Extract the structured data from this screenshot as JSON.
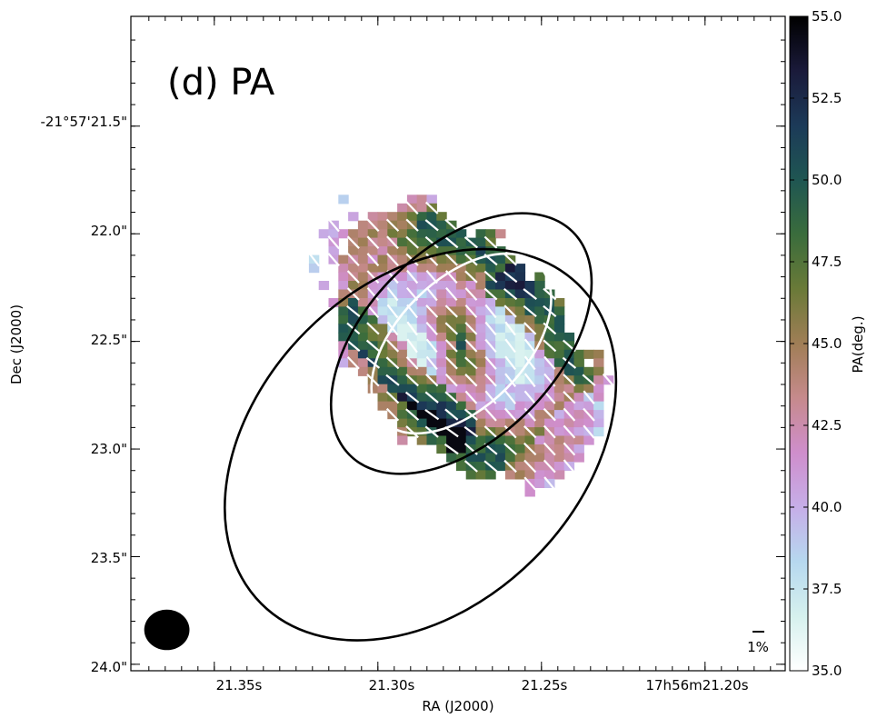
{
  "chart_data": {
    "type": "heatmap",
    "panel_label": "(d) PA",
    "xlabel": "RA (J2000)",
    "ylabel": "Dec (J2000)",
    "x_ticks": [
      {
        "ra_s": 21.35,
        "label": "21.35s"
      },
      {
        "ra_s": 21.3,
        "label": "21.30s"
      },
      {
        "ra_s": 21.25,
        "label": "21.25s"
      },
      {
        "ra_s": 21.2,
        "label": "17h56m21.20s"
      }
    ],
    "y_ticks": [
      {
        "dec_arcsec": 21.5,
        "label": "-21°57'21.5\""
      },
      {
        "dec_arcsec": 22.0,
        "label": "22.0\""
      },
      {
        "dec_arcsec": 22.5,
        "label": "22.5\""
      },
      {
        "dec_arcsec": 23.0,
        "label": "23.0\""
      },
      {
        "dec_arcsec": 23.5,
        "label": "23.5\""
      },
      {
        "dec_arcsec": 24.0,
        "label": "24.0\""
      }
    ],
    "xlim_ra_s": [
      21.3755,
      21.1755
    ],
    "ylim_dec_arcsec": [
      20.99,
      24.03
    ],
    "colorbar": {
      "label": "PA(deg.)",
      "vmin": 35.0,
      "vmax": 55.0,
      "ticks": [
        "35.0",
        "37.5",
        "40.0",
        "42.5",
        "45.0",
        "47.5",
        "50.0",
        "52.5",
        "55.0"
      ],
      "colormap": [
        "#ffffff",
        "#d6f1ee",
        "#b6d8ef",
        "#c6aee8",
        "#cf8ecc",
        "#c68a8c",
        "#a07e56",
        "#6a7a38",
        "#3a6c3c",
        "#1f5652",
        "#1c3a58",
        "#1a1a3a",
        "#000000"
      ]
    },
    "scale_bar_label": "1%",
    "ellipses": [
      {
        "name": "outer",
        "color": "#000000",
        "center_ra_s": 21.287,
        "center_dec_arcsec": 22.98,
        "semi_major_arcsec": 1.045,
        "semi_minor_arcsec": 0.748,
        "pa_deg": 45
      },
      {
        "name": "middle",
        "color": "#000000",
        "center_ra_s": 21.2745,
        "center_dec_arcsec": 22.51,
        "semi_major_arcsec": 0.733,
        "semi_minor_arcsec": 0.442,
        "pa_deg": 45
      },
      {
        "name": "inner",
        "color": "#ffffff",
        "center_ra_s": 21.2745,
        "center_dec_arcsec": 22.51,
        "semi_major_arcsec": 0.511,
        "semi_minor_arcsec": 0.296,
        "pa_deg": 45
      }
    ],
    "beam": {
      "center_ra_s": 21.3645,
      "center_dec_arcsec": 23.84,
      "fwhm_major_arcsec": 0.105,
      "fwhm_minor_arcsec": 0.094
    },
    "map_grid": {
      "ra_step_s": 0.003,
      "dec_step_arcsec": 0.04,
      "ra_start_s": 21.3375,
      "ra_end_s": 21.2165,
      "dec_start_arcsec": 21.56,
      "dec_end_arcsec": 23.36,
      "pa_model": "per-pixel PA (deg) on the disk region, ~38-54 deg, vectors every other pixel"
    }
  }
}
